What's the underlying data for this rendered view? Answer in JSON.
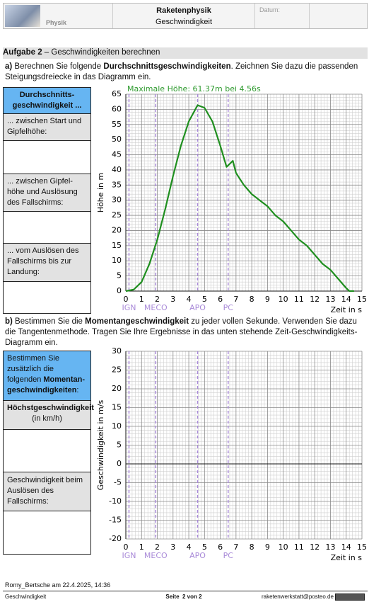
{
  "header": {
    "title": "Raketenphysik",
    "subtitle": "Geschwindigkeit",
    "subject": "Physik",
    "date_label": "Datum:"
  },
  "task": {
    "number": "Aufgabe 2",
    "title": " – Geschwindigkeiten berechnen"
  },
  "part_a": {
    "label": "a)",
    "text": [
      " Berechnen Sie folgende ",
      "Durchschnittsgeschwindigkeiten",
      ". Zeichnen Sie dazu die passenden Steigungsdreiecke in das Diagramm ein."
    ]
  },
  "table_a": {
    "header": "Durchschnitts-geschwindigkeit ...",
    "rows": [
      "... zwischen Start und Gipfelhöhe:",
      "... zwischen Gipfel-höhe und Auslösung des Fallschirms:",
      "... vom Auslösen des Fallschirms bis zur Landung:"
    ]
  },
  "part_b": {
    "label": "b)",
    "text": [
      " Bestimmen Sie die ",
      "Momentangeschwindigkeit",
      " zu jeder vollen Sekunde. Verwenden Sie dazu die Tangentenmethode. Tragen Sie Ihre Ergebnisse in das unten stehende Zeit-Geschwindigkeits-Diagramm ein."
    ]
  },
  "table_b": {
    "header": [
      "Bestimmen Sie zusätzlich die folgenden ",
      "Momentan-geschwindigkeiten",
      ":"
    ],
    "rows": [
      {
        "title": "Höchstgeschwindigkeit",
        "unit": "(in km/h)"
      },
      {
        "title": "Geschwindigkeit beim Auslösen des Fallschirms:"
      }
    ]
  },
  "chart_data": [
    {
      "type": "line",
      "title": "Maximale Höhe: 61.37m bei 4.56s",
      "title_color": "#2e9a2e",
      "xlabel": "Zeit in s",
      "ylabel": "Höhe in m",
      "xlim": [
        0,
        15
      ],
      "ylim": [
        0,
        65
      ],
      "xticks": [
        0,
        1,
        2,
        3,
        4,
        5,
        6,
        7,
        8,
        9,
        10,
        11,
        12,
        13,
        14,
        15
      ],
      "yticks": [
        0,
        5,
        10,
        15,
        20,
        25,
        30,
        35,
        40,
        45,
        50,
        55,
        60,
        65
      ],
      "grid": true,
      "x": [
        0,
        0.5,
        1,
        1.5,
        2,
        2.5,
        3,
        3.5,
        4,
        4.56,
        5,
        5.5,
        6,
        6.4,
        6.6,
        6.8,
        7,
        7.5,
        8,
        8.5,
        9,
        9.5,
        10,
        10.5,
        11,
        11.5,
        12,
        12.5,
        13,
        13.5,
        14,
        14.2,
        14.5
      ],
      "series": [
        {
          "color": "#1f8f1f",
          "values": [
            0,
            0.5,
            3,
            9,
            17,
            27,
            38,
            48,
            56,
            61.37,
            60.5,
            56,
            48,
            41,
            42,
            43,
            39,
            35,
            32,
            30,
            28,
            25,
            23,
            20,
            17,
            15,
            12,
            9,
            7,
            4,
            1,
            0,
            0
          ]
        }
      ],
      "marker_color": "#a98ad8",
      "markers": [
        {
          "label": "IGN",
          "value": 0.2
        },
        {
          "label": "MECO",
          "value": 1.9
        },
        {
          "label": "APO",
          "value": 4.56
        },
        {
          "label": "PC",
          "value": 6.5
        }
      ]
    },
    {
      "type": "line",
      "xlabel": "Zeit in s",
      "ylabel": "Geschwindigkeit in m/s",
      "xlim": [
        0,
        15
      ],
      "ylim": [
        -20,
        30
      ],
      "xticks": [
        0,
        1,
        2,
        3,
        4,
        5,
        6,
        7,
        8,
        9,
        10,
        11,
        12,
        13,
        14,
        15
      ],
      "yticks": [
        -20,
        -15,
        -10,
        -5,
        0,
        5,
        10,
        15,
        20,
        25,
        30
      ],
      "grid": true,
      "series": [],
      "marker_color": "#a98ad8",
      "markers": [
        {
          "label": "IGN",
          "value": 0.2
        },
        {
          "label": "MECO",
          "value": 1.9
        },
        {
          "label": "APO",
          "value": 4.56
        },
        {
          "label": "PC",
          "value": 6.5
        }
      ]
    }
  ],
  "footer": {
    "author": "Romy_Bertsche am 22.4.2025, 14:36",
    "left": "Geschwindigkeit",
    "page": "Seite  2 von 2",
    "email": "raketenwerkstatt@posteo.de"
  }
}
